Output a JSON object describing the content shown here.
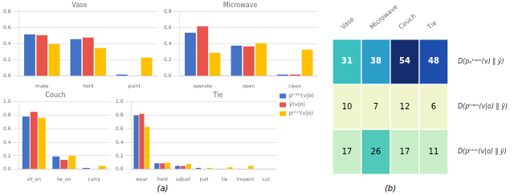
{
  "chart_data": [
    {
      "type": "bar",
      "title": "Vase",
      "categories": [
        "make",
        "hold",
        "paint"
      ],
      "series": [
        {
          "name": "pᵗʳᵃⁱⁿ(v|o)",
          "color": "#4472C4",
          "values": [
            0.52,
            0.46,
            0.02
          ]
        },
        {
          "name": "ŷ(v|o)",
          "color": "#E8534A",
          "values": [
            0.51,
            0.48,
            0.0
          ]
        },
        {
          "name": "pᵗᵉˢᵗ(v|o)",
          "color": "#FFC000",
          "values": [
            0.4,
            0.35,
            0.23
          ]
        }
      ],
      "ylim": [
        0,
        0.8
      ],
      "yticks": [
        {
          "value": 0,
          "label": "0.0"
        },
        0.2,
        0.4,
        0.6,
        0.8
      ],
      "grid": true
    },
    {
      "type": "bar",
      "title": "Microwave",
      "categories": [
        "operate",
        "open",
        "clean"
      ],
      "series": [
        {
          "name": "pᵗʳᵃⁱⁿ(v|o)",
          "color": "#4472C4",
          "values": [
            0.54,
            0.38,
            0.02
          ]
        },
        {
          "name": "ŷ(v|o)",
          "color": "#E8534A",
          "values": [
            0.62,
            0.37,
            0.02
          ]
        },
        {
          "name": "pᵗᵉˢᵗ(v|o)",
          "color": "#FFC000",
          "values": [
            0.29,
            0.41,
            0.33
          ]
        }
      ],
      "ylim": [
        0,
        0.8
      ],
      "yticks": [
        {
          "value": 0,
          "label": "0.0"
        },
        0.2,
        0.4,
        0.6,
        0.8
      ],
      "grid": true
    },
    {
      "type": "bar",
      "title": "Couch",
      "categories": [
        "sit_on",
        "lie_on",
        "carry"
      ],
      "series": [
        {
          "name": "pᵗʳᵃⁱⁿ(v|o)",
          "color": "#4472C4",
          "values": [
            0.78,
            0.19,
            0.02
          ]
        },
        {
          "name": "ŷ(v|o)",
          "color": "#E8534A",
          "values": [
            0.85,
            0.14,
            0.0
          ]
        },
        {
          "name": "pᵗᵉˢᵗ(v|o)",
          "color": "#FFC000",
          "values": [
            0.76,
            0.2,
            0.05
          ]
        }
      ],
      "ylim": [
        0,
        1.0
      ],
      "yticks": [
        {
          "value": 0,
          "label": "0.0"
        },
        0.2,
        0.4,
        0.6,
        0.8,
        {
          "value": 1,
          "label": "1.0"
        }
      ],
      "grid": true
    },
    {
      "type": "bar",
      "title": "Tie",
      "categories": [
        "wear",
        "hold",
        "adjust",
        "pull",
        "tie",
        "inspect",
        "cut"
      ],
      "series": [
        {
          "name": "pᵗʳᵃⁱⁿ(v|o)",
          "color": "#4472C4",
          "values": [
            0.8,
            0.09,
            0.05,
            0.02,
            0.01,
            0.01,
            0.0
          ]
        },
        {
          "name": "ŷ(v|o)",
          "color": "#E8534A",
          "values": [
            0.82,
            0.09,
            0.05,
            0.0,
            0.01,
            0.0,
            0.0
          ]
        },
        {
          "name": "pᵗᵉˢᵗ(v|o)",
          "color": "#FFC000",
          "values": [
            0.63,
            0.1,
            0.08,
            0.02,
            0.03,
            0.05,
            0.01
          ]
        }
      ],
      "ylim": [
        0,
        1.0
      ],
      "yticks": [
        {
          "value": 0,
          "label": "0.0"
        },
        0.2,
        0.4,
        0.6,
        0.8,
        {
          "value": 1,
          "label": "1.0"
        }
      ],
      "grid": true,
      "legend": "upper right"
    },
    {
      "type": "heatmap",
      "categories": [
        "Vase",
        "Microwave",
        "Couch",
        "Tie"
      ],
      "rows": [
        "D(pₒᵗʳᵃⁱⁿ(v) ‖ ŷ)",
        "D(pᵗʳᵃⁱⁿ(v|o) ‖ ŷ)",
        "D(pᵗᵉˢᵗ(v|o) ‖ ŷ)"
      ],
      "values": [
        [
          31,
          38,
          54,
          48
        ],
        [
          10,
          7,
          12,
          6
        ],
        [
          17,
          26,
          17,
          11
        ]
      ],
      "colors": [
        [
          "#3BBFBF",
          "#2B9DC9",
          "#152C6E",
          "#1E4FAD"
        ],
        [
          "#F0F5CE",
          "#F0F5CE",
          "#F0F5CE",
          "#F0F5CE"
        ],
        [
          "#C8EEC8",
          "#52C8B8",
          "#C8EEC8",
          "#C8EEC8"
        ]
      ],
      "text_colors": [
        [
          "white",
          "white",
          "white",
          "white"
        ],
        [
          "black",
          "black",
          "black",
          "black"
        ],
        [
          "black",
          "black",
          "black",
          "black"
        ]
      ]
    }
  ],
  "annotations": [
    "(a)",
    "(b)"
  ]
}
